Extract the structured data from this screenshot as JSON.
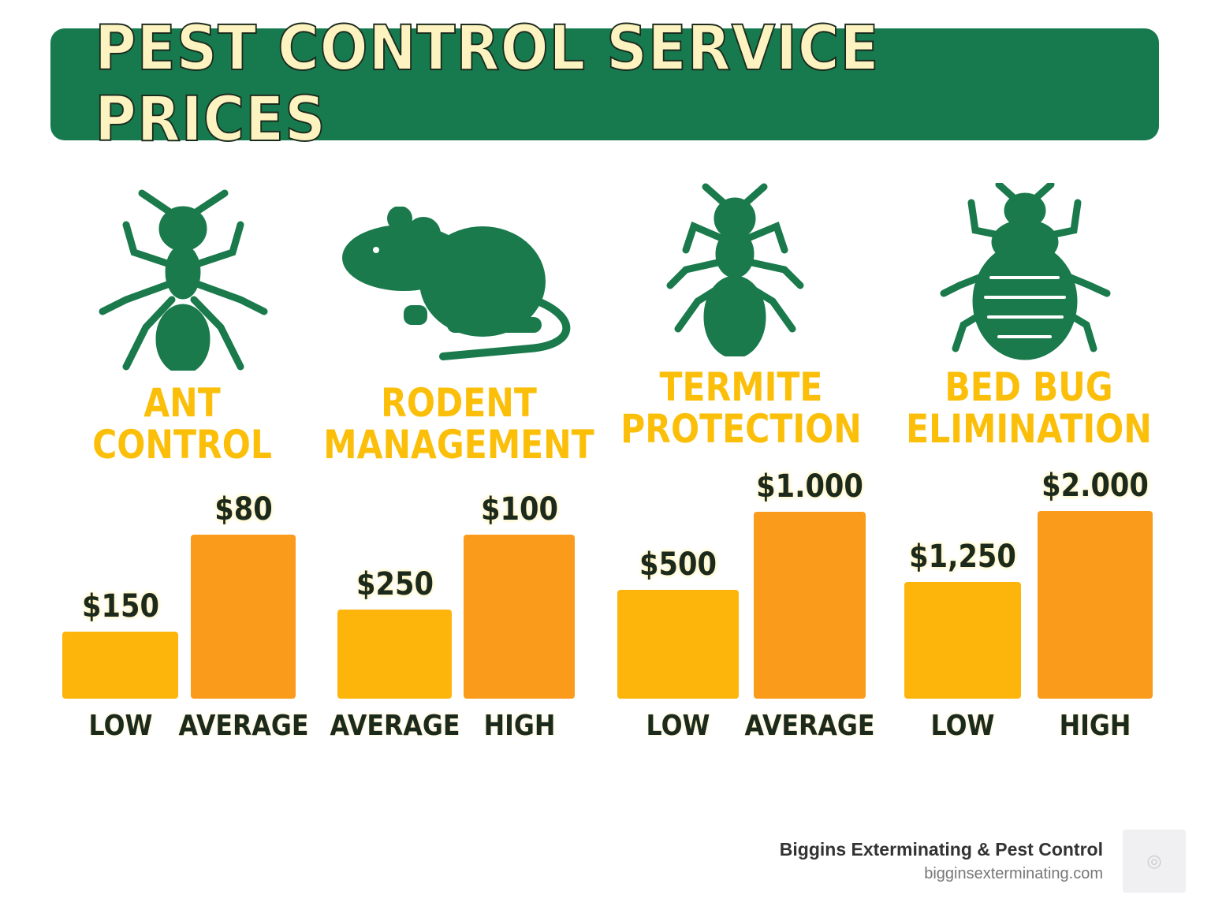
{
  "title": "PEST CONTROL SERVICE PRICES",
  "colors": {
    "header": "#177a4f",
    "title_text": "#fdf3c0",
    "icon": "#1a7a4c",
    "category_text": "#fbbf0a",
    "bar_first": "#fdb50c",
    "bar_second": "#fb9b1c"
  },
  "chart_data": [
    {
      "type": "bar",
      "title": "ANT CONTROL",
      "title_lines": [
        "ANT",
        "CONTROL"
      ],
      "icon": "ant-icon",
      "categories": [
        "LOW",
        "AVERAGE"
      ],
      "labels": [
        "$150",
        "$80"
      ],
      "values": [
        150,
        80
      ]
    },
    {
      "type": "bar",
      "title": "RODENT MANAGEMENT",
      "title_lines": [
        "RODENT",
        "MANAGEMENT"
      ],
      "icon": "rodent-icon",
      "categories": [
        "AVERAGE",
        "HIGH"
      ],
      "labels": [
        "$250",
        "$100"
      ],
      "values": [
        250,
        100
      ]
    },
    {
      "type": "bar",
      "title": "TERMITE PROTECTION",
      "title_lines": [
        "TERMITE",
        "PROTECTION"
      ],
      "icon": "termite-icon",
      "categories": [
        "LOW",
        "AVERAGE"
      ],
      "labels": [
        "$500",
        "$1.000"
      ],
      "values": [
        500,
        1000
      ]
    },
    {
      "type": "bar",
      "title": "BED BUG ELIMINATION",
      "title_lines": [
        "BED BUG",
        "ELIMINATION"
      ],
      "icon": "bed-bug-icon",
      "categories": [
        "LOW",
        "HIGH"
      ],
      "labels": [
        "$1,250",
        "$2.000"
      ],
      "values": [
        1250,
        2000
      ]
    }
  ],
  "footer": {
    "company": "Biggins Exterminating & Pest Control",
    "url": "bigginsexterminating.com",
    "logo_icon": "bug-logo-icon"
  }
}
